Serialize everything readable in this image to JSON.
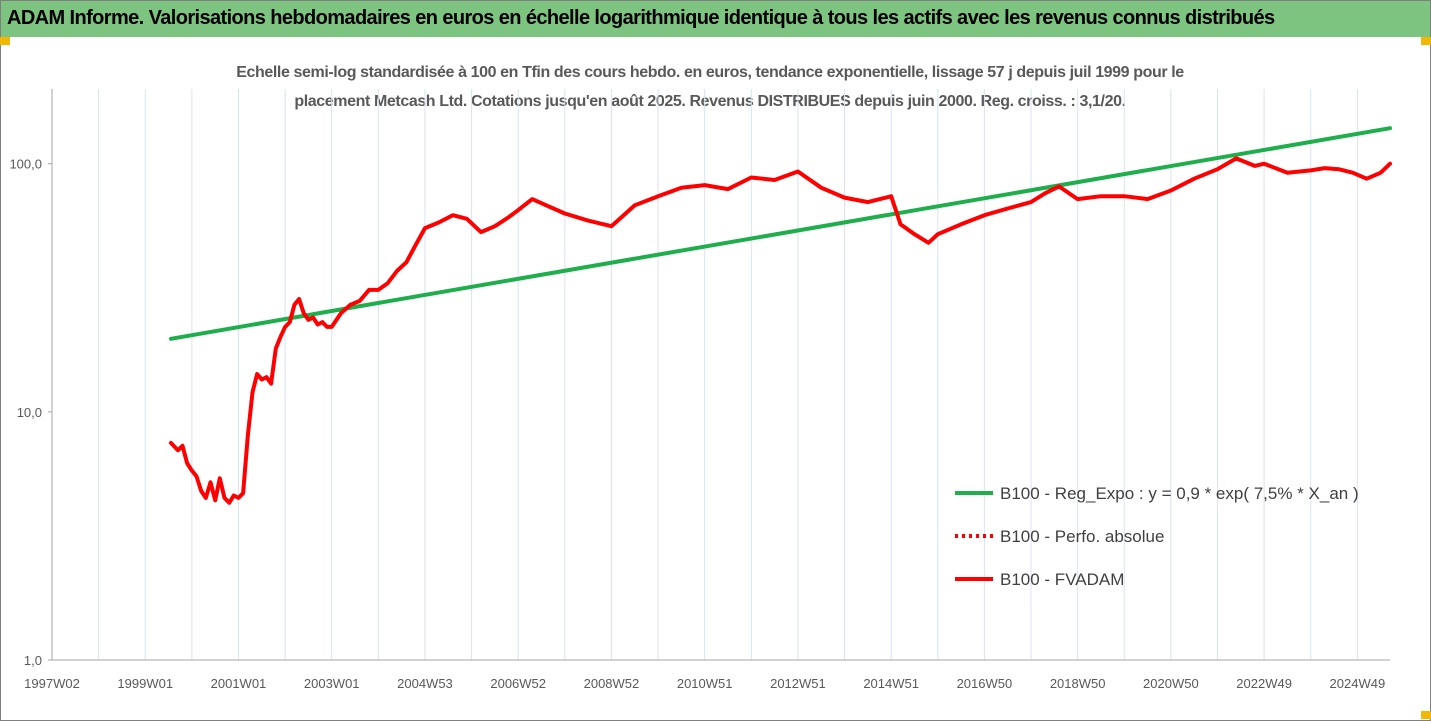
{
  "banner": {
    "title": "ADAM Informe. Valorisations hebdomadaires en euros en échelle logarithmique identique à tous les actifs avec les revenus connus distribués"
  },
  "colors": {
    "banner_bg": "#7cc47f",
    "reg_line": "#1fae4c",
    "fvadam_line": "#ff0000",
    "perfo_line": "#ff0000",
    "axis_text": "#595959",
    "grid": "#d9e3f0",
    "corner_accent": "#f2b705"
  },
  "chart_data": {
    "type": "line",
    "title_line1": "Echelle semi-log standardisée à 100 en Tfin des cours hebdo. en euros, tendance exponentielle, lissage 57 j depuis juil 1999 pour le",
    "title_line2": "placement Metcash Ltd. Cotations jusqu'en août 2025. Revenus DISTRIBUES depuis juin 2000. Reg. croiss. : 3,1/20.",
    "y_scale": "log",
    "y_range": [
      1,
      200
    ],
    "y_ticks": [
      {
        "value": 1,
        "label": "1,0"
      },
      {
        "value": 10,
        "label": "10,0"
      },
      {
        "value": 100,
        "label": "100,0"
      }
    ],
    "x_range": [
      1997.0,
      2025.7
    ],
    "x_ticks": [
      {
        "value": 1997.0,
        "label": "1997W02"
      },
      {
        "value": 1999.0,
        "label": "1999W01"
      },
      {
        "value": 2001.0,
        "label": "2001W01"
      },
      {
        "value": 2003.0,
        "label": "2003W01"
      },
      {
        "value": 2005.0,
        "label": "2004W53"
      },
      {
        "value": 2007.0,
        "label": "2006W52"
      },
      {
        "value": 2009.0,
        "label": "2008W52"
      },
      {
        "value": 2011.0,
        "label": "2010W51"
      },
      {
        "value": 2013.0,
        "label": "2012W51"
      },
      {
        "value": 2015.0,
        "label": "2014W51"
      },
      {
        "value": 2017.0,
        "label": "2016W50"
      },
      {
        "value": 2019.0,
        "label": "2018W50"
      },
      {
        "value": 2021.0,
        "label": "2020W50"
      },
      {
        "value": 2023.0,
        "label": "2022W49"
      },
      {
        "value": 2025.0,
        "label": "2024W49"
      }
    ],
    "legend_position": "bottom-right",
    "series": [
      {
        "name": "B100 - Reg_Expo : y = 0,9 * exp( 7,5% *  X_an )",
        "style": "solid",
        "x": [
          1999.55,
          2025.7
        ],
        "y": [
          19.7,
          139
        ]
      },
      {
        "name": "B100 - Perfo. absolue",
        "style": "dotted",
        "x": [],
        "y": []
      },
      {
        "name": "B100 - FVADAM",
        "style": "solid",
        "x": [
          1999.55,
          1999.7,
          1999.8,
          1999.9,
          2000.0,
          2000.1,
          2000.2,
          2000.3,
          2000.4,
          2000.5,
          2000.6,
          2000.7,
          2000.8,
          2000.9,
          2001.0,
          2001.1,
          2001.2,
          2001.3,
          2001.4,
          2001.5,
          2001.6,
          2001.7,
          2001.8,
          2001.9,
          2002.0,
          2002.1,
          2002.2,
          2002.3,
          2002.4,
          2002.5,
          2002.6,
          2002.7,
          2002.8,
          2002.9,
          2003.0,
          2003.2,
          2003.4,
          2003.6,
          2003.8,
          2004.0,
          2004.2,
          2004.4,
          2004.6,
          2004.8,
          2005.0,
          2005.3,
          2005.6,
          2005.9,
          2006.2,
          2006.5,
          2006.8,
          2007.0,
          2007.3,
          2007.6,
          2008.0,
          2008.5,
          2009.0,
          2009.5,
          2010.0,
          2010.5,
          2011.0,
          2011.5,
          2012.0,
          2012.5,
          2013.0,
          2013.5,
          2014.0,
          2014.5,
          2015.0,
          2015.2,
          2015.5,
          2015.8,
          2016.0,
          2016.5,
          2017.0,
          2017.5,
          2018.0,
          2018.3,
          2018.6,
          2019.0,
          2019.5,
          2020.0,
          2020.5,
          2021.0,
          2021.5,
          2022.0,
          2022.4,
          2022.8,
          2023.0,
          2023.5,
          2024.0,
          2024.3,
          2024.6,
          2024.9,
          2025.2,
          2025.5,
          2025.7
        ],
        "y": [
          7.5,
          7.0,
          7.3,
          6.2,
          5.8,
          5.5,
          4.8,
          4.5,
          5.2,
          4.4,
          5.4,
          4.5,
          4.3,
          4.6,
          4.5,
          4.7,
          8.0,
          12.0,
          14.2,
          13.5,
          13.8,
          13.0,
          18.0,
          20.0,
          22.0,
          23.0,
          27.0,
          28.5,
          25.0,
          23.5,
          24.0,
          22.5,
          23.0,
          22.0,
          22.0,
          25.0,
          27.0,
          28.0,
          31.0,
          31.0,
          33.0,
          37.0,
          40.0,
          47.0,
          55.0,
          58.0,
          62.0,
          60.0,
          53.0,
          56.0,
          61.0,
          65.0,
          72.0,
          68.0,
          63.0,
          59.0,
          56.0,
          68.0,
          74.0,
          80.0,
          82.0,
          79.0,
          88.0,
          86.0,
          93.0,
          80.0,
          73.0,
          70.0,
          74.0,
          57.0,
          52.0,
          48.0,
          52.0,
          57.0,
          62.0,
          66.0,
          70.0,
          76.0,
          81.0,
          72.0,
          74.0,
          74.0,
          72.0,
          78.0,
          87.0,
          95.0,
          105.0,
          98.0,
          100.0,
          92.0,
          94.0,
          96.0,
          95.0,
          92.0,
          87.0,
          92.0,
          100.0
        ]
      }
    ]
  }
}
